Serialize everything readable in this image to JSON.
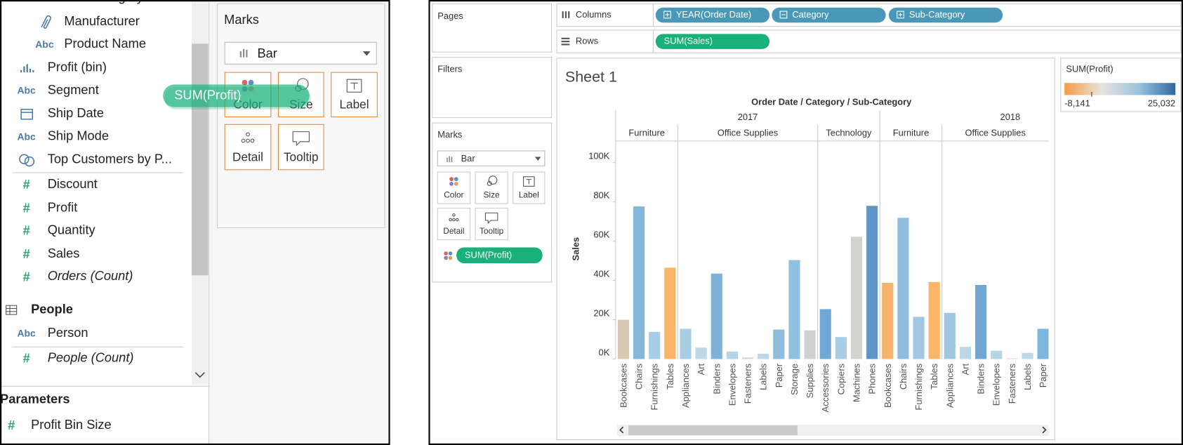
{
  "data_pane": {
    "dimensions": [
      {
        "icon": "Abc",
        "name": "Sub-Category"
      },
      {
        "name": "Manufacturer"
      },
      {
        "icon": "Abc",
        "name": "Product Name"
      },
      {
        "name": "Profit (bin)"
      },
      {
        "icon": "Abc",
        "name": "Segment"
      },
      {
        "name": "Ship Date"
      },
      {
        "icon": "Abc",
        "name": "Ship Mode"
      },
      {
        "name": "Top Customers by P..."
      }
    ],
    "measures": [
      {
        "icon": "#",
        "name": "Discount"
      },
      {
        "icon": "#",
        "name": "Profit"
      },
      {
        "icon": "#",
        "name": "Quantity"
      },
      {
        "icon": "#",
        "name": "Sales"
      },
      {
        "icon": "#",
        "name": "Orders (Count)"
      }
    ],
    "people": {
      "title": "People",
      "fields": [
        {
          "icon": "Abc",
          "name": "Person"
        },
        {
          "icon": "#",
          "name": "People (Count)"
        }
      ]
    },
    "parameters": {
      "title": "Parameters",
      "fields": [
        {
          "icon": "#",
          "name": "Profit Bin Size"
        }
      ]
    }
  },
  "marks_card": {
    "title": "Marks",
    "mark_type": "Bar",
    "buttons": [
      "Color",
      "Size",
      "Label",
      "Detail",
      "Tooltip"
    ],
    "dragged_pill": "SUM(Profit)"
  },
  "worksheet": {
    "pages": "Pages",
    "columns_label": "Columns",
    "columns": [
      "YEAR(Order Date)",
      "Category",
      "Sub-Category"
    ],
    "rows_label": "Rows",
    "rows": [
      "SUM(Sales)"
    ],
    "filters": "Filters",
    "marks": {
      "title": "Marks",
      "mark_type": "Bar",
      "buttons": [
        "Color",
        "Size",
        "Label",
        "Detail",
        "Tooltip"
      ],
      "pill": "SUM(Profit)"
    }
  },
  "chart_data": {
    "type": "bar",
    "title": "Sheet 1",
    "header": "Order Date / Category / Sub-Category",
    "y_label": "Sales",
    "ylim": [
      0,
      111000
    ],
    "yticks": [
      {
        "value": 0,
        "label": "0K"
      },
      {
        "value": 20000,
        "label": "20K"
      },
      {
        "value": 40000,
        "label": "40K"
      },
      {
        "value": 60000,
        "label": "60K"
      },
      {
        "value": 80000,
        "label": "80K"
      },
      {
        "value": 100000,
        "label": "100K"
      }
    ],
    "years": [
      {
        "year": "2017",
        "categories": [
          {
            "name": "Furniture",
            "sub": [
              {
                "name": "Bookcases",
                "value": 20000,
                "color": "#d9c8b3"
              },
              {
                "name": "Chairs",
                "value": 77700,
                "color": "#84b6db"
              },
              {
                "name": "Furnishings",
                "value": 13800,
                "color": "#a8cde4"
              },
              {
                "name": "Tables",
                "value": 46500,
                "color": "#f9b466"
              }
            ]
          },
          {
            "name": "Office Supplies",
            "sub": [
              {
                "name": "Appliances",
                "value": 15400,
                "color": "#a9cde4"
              },
              {
                "name": "Art",
                "value": 5800,
                "color": "#bcd8e8"
              },
              {
                "name": "Binders",
                "value": 43500,
                "color": "#7fb2d8"
              },
              {
                "name": "Envelopes",
                "value": 3800,
                "color": "#b5d4e6"
              },
              {
                "name": "Fasteners",
                "value": 800,
                "color": "#d4d8da"
              },
              {
                "name": "Labels",
                "value": 2700,
                "color": "#bcd8e8"
              },
              {
                "name": "Paper",
                "value": 15000,
                "color": "#8fbde0"
              },
              {
                "name": "Storage",
                "value": 50400,
                "color": "#92c1e0"
              },
              {
                "name": "Supplies",
                "value": 14600,
                "color": "#cfd2d0"
              }
            ]
          },
          {
            "name": "Technology",
            "sub": [
              {
                "name": "Accessories",
                "value": 25400,
                "color": "#6ea9d6"
              },
              {
                "name": "Copiers",
                "value": 11200,
                "color": "#a9cde4"
              },
              {
                "name": "Machines",
                "value": 62300,
                "color": "#d3d3d0"
              },
              {
                "name": "Phones",
                "value": 78000,
                "color": "#5d95c8"
              }
            ]
          }
        ]
      },
      {
        "year": "2018",
        "categories": [
          {
            "name": "Furniture",
            "sub": [
              {
                "name": "Bookcases",
                "value": 38800,
                "color": "#f8b36a"
              },
              {
                "name": "Chairs",
                "value": 71900,
                "color": "#8ebde0"
              },
              {
                "name": "Furnishings",
                "value": 21500,
                "color": "#a0c8e2"
              },
              {
                "name": "Tables",
                "value": 39200,
                "color": "#fab767"
              }
            ]
          },
          {
            "name": "Office Supplies",
            "sub": [
              {
                "name": "Appliances",
                "value": 23500,
                "color": "#9fc7e2"
              },
              {
                "name": "Art",
                "value": 6200,
                "color": "#bcd8e8"
              },
              {
                "name": "Binders",
                "value": 37700,
                "color": "#6ea7d4"
              },
              {
                "name": "Envelopes",
                "value": 4200,
                "color": "#b5d4e6"
              },
              {
                "name": "Fasteners",
                "value": 400,
                "color": "#d9dbdb"
              },
              {
                "name": "Labels",
                "value": 3100,
                "color": "#bcd8e8"
              },
              {
                "name": "Paper",
                "value": 15400,
                "color": "#7fb6dc"
              }
            ]
          }
        ]
      }
    ],
    "legend": {
      "title": "SUM(Profit)",
      "min_label": "-8,141",
      "max_label": "25,032",
      "colors": [
        "#f39c43",
        "#e9e4dc",
        "#9cc3df",
        "#2e6aa1"
      ]
    }
  }
}
